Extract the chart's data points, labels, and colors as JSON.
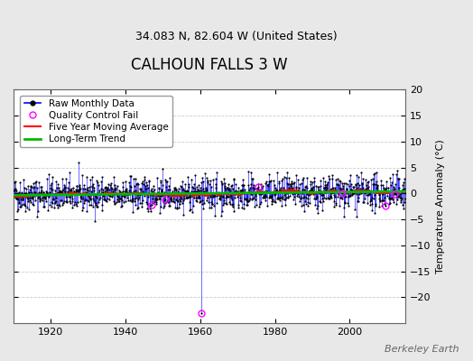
{
  "title": "CALHOUN FALLS 3 W",
  "subtitle": "34.083 N, 82.604 W (United States)",
  "ylabel": "Temperature Anomaly (°C)",
  "credit": "Berkeley Earth",
  "ylim": [
    -25,
    20
  ],
  "yticks": [
    -20,
    -15,
    -10,
    -5,
    0,
    5,
    10,
    15,
    20
  ],
  "xlim": [
    1910,
    2015
  ],
  "xticks": [
    1920,
    1940,
    1960,
    1980,
    2000
  ],
  "background_color": "#e8e8e8",
  "plot_background": "#ffffff",
  "raw_color": "#0000ff",
  "qc_color": "#ff00ff",
  "moving_avg_color": "#ff0000",
  "trend_color": "#00bb00",
  "marker_color": "#000000",
  "seed": 42,
  "noise_std": 1.6,
  "start_year": 1910,
  "end_year": 2014,
  "outlier_year": 1960.2,
  "outlier_val": -23.0,
  "qc_years": [
    1947.0,
    1950.5,
    1960.2,
    1975.5,
    1998.0,
    2009.5,
    2012.0
  ],
  "grid_color": "#cccccc",
  "title_fontsize": 12,
  "subtitle_fontsize": 9,
  "tick_fontsize": 8,
  "legend_fontsize": 7.5,
  "credit_fontsize": 8
}
